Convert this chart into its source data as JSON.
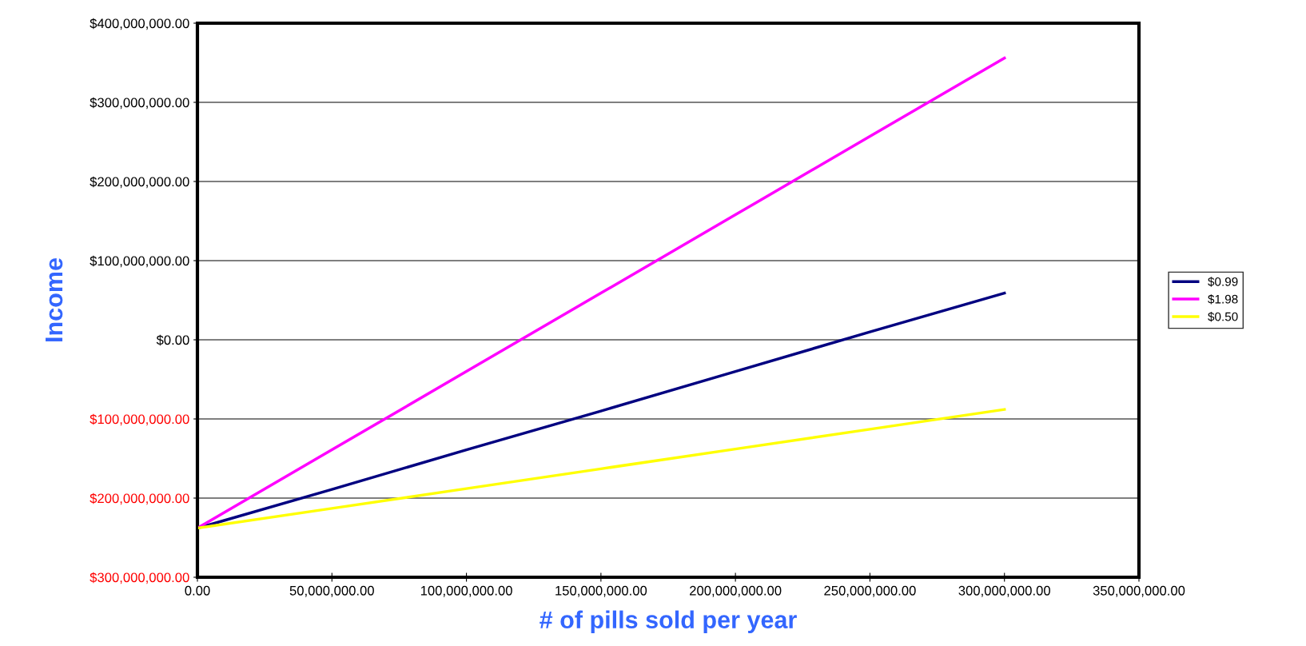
{
  "chart_data": {
    "type": "line",
    "xlabel": "# of pills sold per year",
    "ylabel": "Income",
    "x": [
      0,
      50000000,
      100000000,
      150000000,
      200000000,
      250000000,
      300000000
    ],
    "series": [
      {
        "name": "$0.99",
        "color": "#000080",
        "values": [
          -238000000,
          -189000000,
          -139000000,
          -90000000,
          -40000000,
          10000000,
          59000000
        ]
      },
      {
        "name": "$1.98",
        "color": "#ff00ff",
        "values": [
          -238000000,
          -139000000,
          -40000000,
          59000000,
          158000000,
          257000000,
          356000000
        ]
      },
      {
        "name": "$0.50",
        "color": "#ffff00",
        "values": [
          -238000000,
          -213000000,
          -188000000,
          -163000000,
          -138000000,
          -113000000,
          -88000000
        ]
      }
    ],
    "xlim": [
      0,
      350000000
    ],
    "xticks": [
      {
        "value": 0,
        "label": "0.00"
      },
      {
        "value": 50000000,
        "label": "50,000,000.00"
      },
      {
        "value": 100000000,
        "label": "100,000,000.00"
      },
      {
        "value": 150000000,
        "label": "150,000,000.00"
      },
      {
        "value": 200000000,
        "label": "200,000,000.00"
      },
      {
        "value": 250000000,
        "label": "250,000,000.00"
      },
      {
        "value": 300000000,
        "label": "300,000,000.00"
      },
      {
        "value": 350000000,
        "label": "350,000,000.00"
      }
    ],
    "ylim": [
      -300000000,
      400000000
    ],
    "yticks": [
      {
        "value": -300000000,
        "label": "$300,000,000.00"
      },
      {
        "value": -200000000,
        "label": "$200,000,000.00"
      },
      {
        "value": -100000000,
        "label": "$100,000,000.00"
      },
      {
        "value": 0,
        "label": "$0.00"
      },
      {
        "value": 100000000,
        "label": "$100,000,000.00"
      },
      {
        "value": 200000000,
        "label": "$200,000,000.00"
      },
      {
        "value": 300000000,
        "label": "$300,000,000.00"
      },
      {
        "value": 400000000,
        "label": "$400,000,000.00"
      }
    ],
    "grid": "y",
    "legend": "right",
    "marker": "none",
    "line_style": "solid"
  }
}
